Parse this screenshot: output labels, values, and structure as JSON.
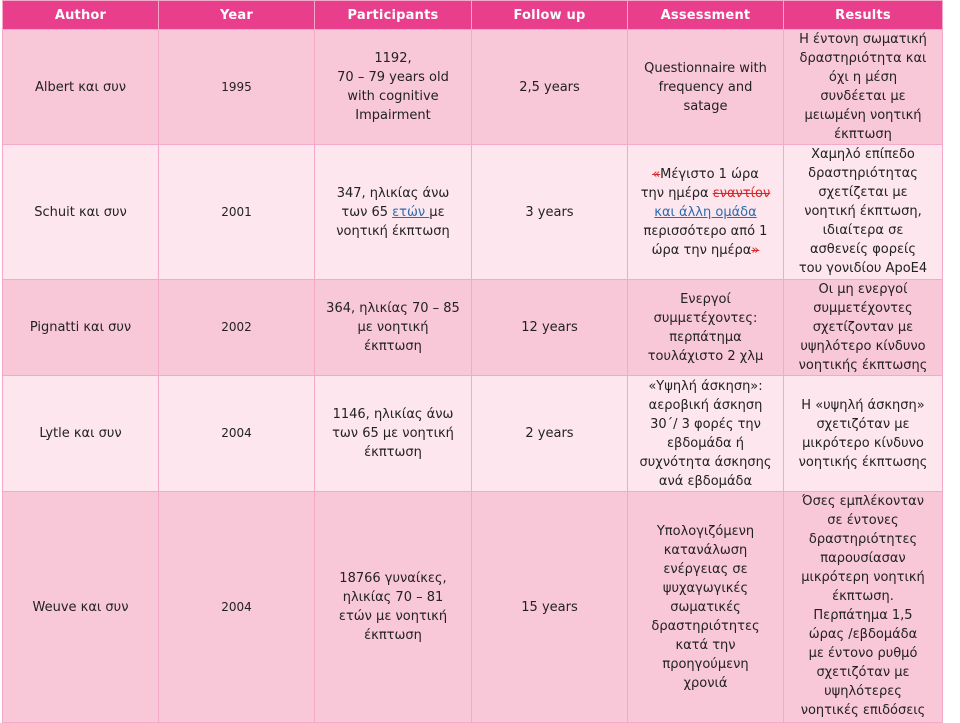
{
  "headers": [
    "Author",
    "Year",
    "Participants",
    "Follow up",
    "Assessment",
    "Results"
  ],
  "rows": [
    {
      "author": "Albert και συν",
      "year": "1995",
      "participants": [
        "1192,",
        "70 – 79 years old",
        "with cognitive",
        "Impairment"
      ],
      "followup": "2,5 years",
      "assessment": [
        "Questionnaire with",
        "frequency and",
        "satage"
      ],
      "results": [
        "Η έντονη σωματική",
        "δραστηριότητα και",
        "όχι η μέση",
        "συνδέεται με",
        "μειωμένη νοητική",
        "έκπτωση"
      ]
    },
    {
      "author": "Schuit και συν",
      "year": "2001",
      "participants": {
        "p1": "347, ηλικίας άνω",
        "p2a": "των 65 ",
        "p2link": "ετών ",
        "p2b": "με",
        "p3": "νοητική έκπτωση"
      },
      "followup": "3 years",
      "assessment": {
        "q_open": "«",
        "l1": "Μέγιστο 1 ώρα",
        "l2a": "την ημέρα ",
        "l2del": "εναντίον",
        "l3link": "και άλλη ομάδα",
        "l4": "περισσότερο από 1",
        "l5": "ώρα την ημέρα",
        "q_close": "»"
      },
      "results": [
        "Χαμηλό επίπεδο",
        "δραστηριότητας",
        "σχετίζεται με",
        "νοητική έκπτωση,",
        "ιδιαίτερα σε",
        "ασθενείς φορείς",
        "του γονιδίου ApoE4"
      ]
    },
    {
      "author": "Pignatti και συν",
      "year": "2002",
      "participants": [
        "364, ηλικίας 70 – 85",
        "με νοητική",
        "έκπτωση"
      ],
      "followup": "12 years",
      "assessment": [
        "Ενεργοί",
        "συμμετέχοντες:",
        "περπάτημα",
        "τουλάχιστο 2 χλμ"
      ],
      "results": [
        "Οι μη ενεργοί",
        "συμμετέχοντες",
        "σχετίζονταν με",
        "υψηλότερο κίνδυνο",
        "νοητικής έκπτωσης"
      ]
    },
    {
      "author": "Lytle και συν",
      "year": "2004",
      "participants": [
        "1146, ηλικίας άνω",
        "των 65 με νοητική",
        "έκπτωση"
      ],
      "followup": "2 years",
      "assessment": [
        "«Υψηλή άσκηση»:",
        "αεροβική άσκηση",
        "30΄/ 3 φορές την",
        "εβδομάδα ή",
        "συχνότητα άσκησης",
        "ανά εβδομάδα"
      ],
      "results": [
        "Η «υψηλή άσκηση»",
        "σχετιζόταν με",
        "μικρότερο κίνδυνο",
        "νοητικής έκπτωσης"
      ]
    },
    {
      "author": "Weuve και συν",
      "year": "2004",
      "participants": [
        "18766 γυναίκες,",
        "ηλικίας 70 – 81",
        "ετών με νοητική",
        "έκπτωση"
      ],
      "followup": "15 years",
      "assessment": [
        "Υπολογιζόμενη",
        "κατανάλωση",
        "ενέργειας σε",
        "ψυχαγωγικές",
        "σωματικές",
        "δραστηριότητες",
        "κατά την",
        "προηγούμενη",
        "χρονιά"
      ],
      "results": [
        "Όσες εμπλέκονταν",
        "σε έντονες",
        "δραστηριότητες",
        "παρουσίασαν",
        "μικρότερη νοητική",
        "έκπτωση.",
        "Περπάτημα 1,5",
        "ώρας /εβδομάδα",
        "με έντονο ρυθμό",
        "σχετιζόταν με",
        "υψηλότερες",
        "νοητικές επιδόσεις"
      ]
    }
  ],
  "colors": {
    "header": "#e83e8c",
    "row_dark": "#f9c8d8",
    "row_light": "#fde6ee",
    "border": "#f4a9c8",
    "link": "#2b6cb0",
    "strike": "#d62828"
  }
}
